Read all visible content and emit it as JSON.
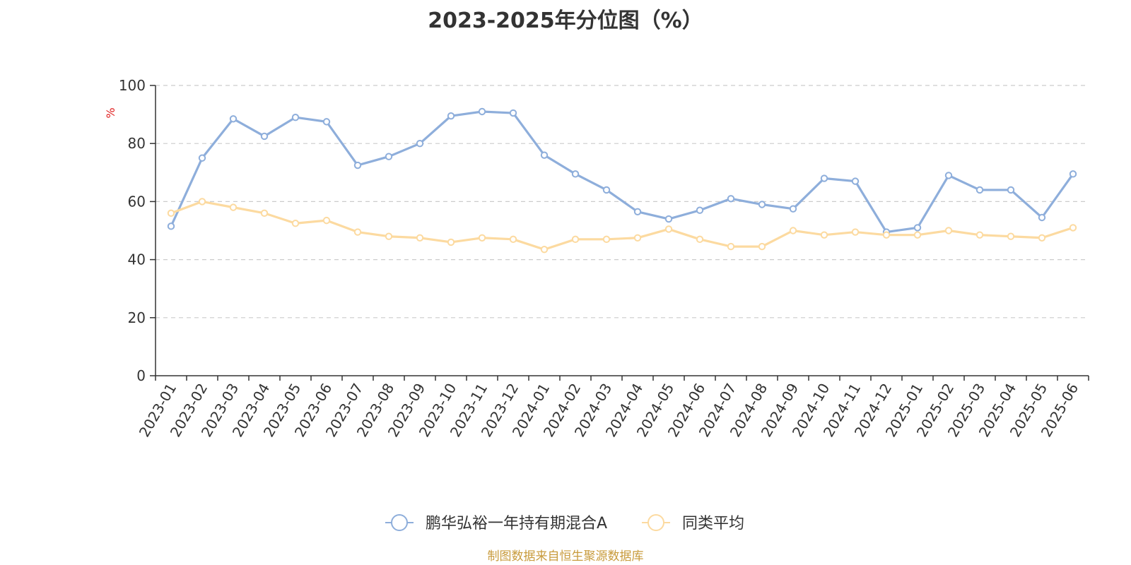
{
  "chart_data": {
    "type": "line",
    "title": "2023-2025年分位图（%）",
    "ylabel": "%",
    "xlabel": "",
    "ylim": [
      0,
      100
    ],
    "yticks": [
      0,
      20,
      40,
      60,
      80,
      100
    ],
    "grid": true,
    "legend_position": "bottom",
    "categories": [
      "2023-01",
      "2023-02",
      "2023-03",
      "2023-04",
      "2023-05",
      "2023-06",
      "2023-07",
      "2023-08",
      "2023-09",
      "2023-10",
      "2023-11",
      "2023-12",
      "2024-01",
      "2024-02",
      "2024-03",
      "2024-04",
      "2024-05",
      "2024-06",
      "2024-07",
      "2024-08",
      "2024-09",
      "2024-10",
      "2024-11",
      "2024-12",
      "2025-01",
      "2025-02",
      "2025-03",
      "2025-04",
      "2025-05",
      "2025-06"
    ],
    "series": [
      {
        "name": "鹏华弘裕一年持有期混合A",
        "color": "#8eaedb",
        "x": [
          0.5,
          1.5,
          2.5,
          3.5,
          4.5,
          5.5,
          6.5,
          7.5,
          8.5,
          9.5,
          10.5,
          11.5,
          12.5,
          13.5,
          14.5,
          15.5,
          16.5,
          17.5,
          18.5,
          19.5,
          20.5,
          21.5,
          22.5,
          23.5,
          24.5,
          25.5,
          26.5,
          27.5,
          28.5,
          29.5
        ],
        "values": [
          51.5,
          75,
          88.5,
          82.5,
          89,
          87.5,
          72.5,
          75.5,
          80,
          89.5,
          91,
          90.5,
          76,
          69.5,
          64,
          56.5,
          54,
          57,
          61,
          59,
          57.5,
          68,
          67,
          49.5,
          51,
          69,
          64,
          64,
          54.5,
          69.5
        ]
      },
      {
        "name": "同类平均",
        "color": "#fcdaa0",
        "x": [
          0.5,
          1.5,
          2.5,
          3.5,
          4.5,
          5.5,
          6.5,
          7.5,
          8.5,
          9.5,
          10.5,
          11.5,
          12.5,
          13.5,
          14.5,
          15.5,
          16.5,
          17.5,
          18.5,
          19.5,
          20.5,
          21.5,
          22.5,
          23.5,
          24.5,
          25.5,
          26.5,
          27.5,
          28.5,
          29.5
        ],
        "values": [
          56,
          60,
          58,
          56,
          52.5,
          53.5,
          49.5,
          48,
          47.5,
          46,
          47.5,
          47,
          43.5,
          47,
          47,
          47.5,
          50.5,
          47,
          44.5,
          44.5,
          50,
          48.5,
          49.5,
          48.5,
          48.5,
          50,
          48.5,
          48,
          47.5,
          51
        ]
      }
    ]
  },
  "source_note": "制图数据来自恒生聚源数据库"
}
